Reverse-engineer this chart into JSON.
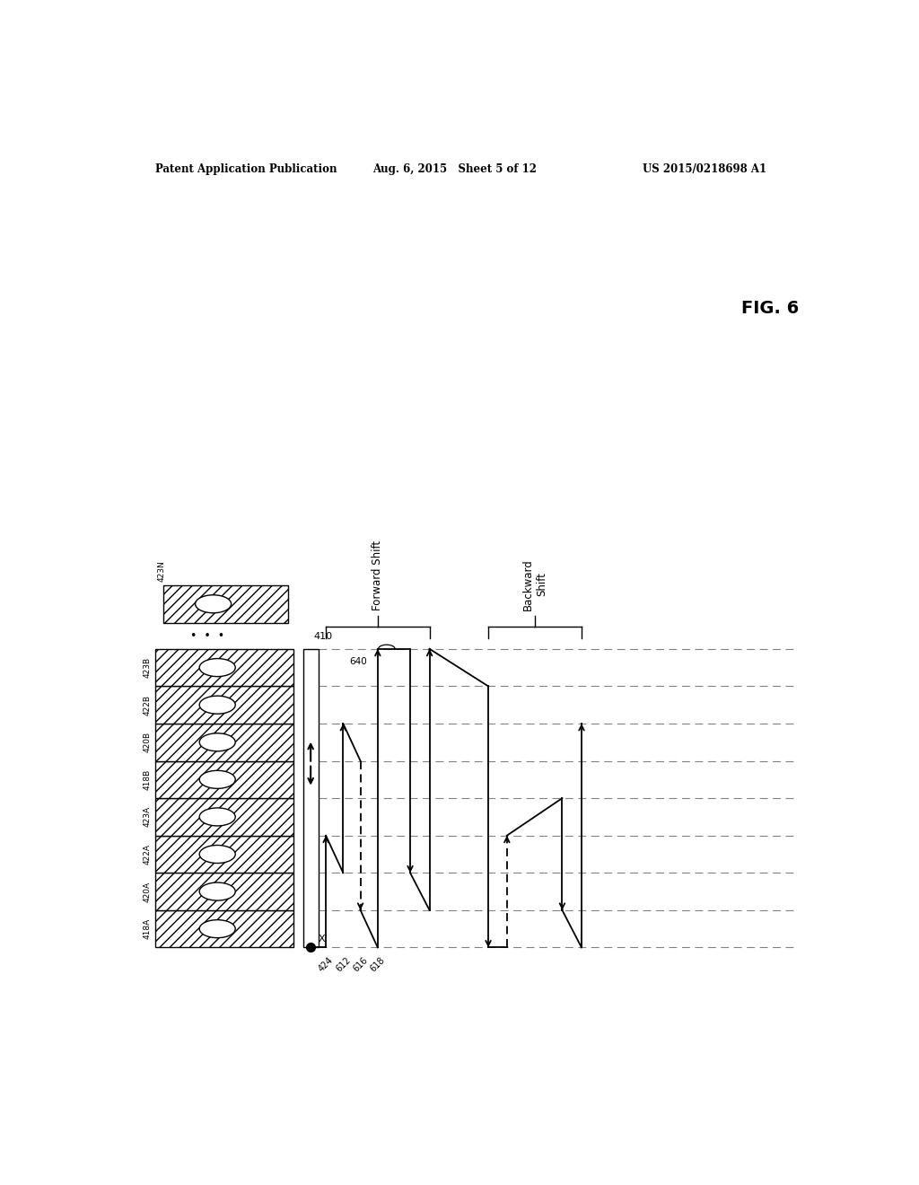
{
  "header_left": "Patent Application Publication",
  "header_mid": "Aug. 6, 2015   Sheet 5 of 12",
  "header_right": "US 2015/0218698 A1",
  "fig_label": "FIG. 6",
  "block_labels": [
    "418A",
    "420A",
    "422A",
    "423A",
    "418B",
    "420B",
    "422B",
    "423B"
  ],
  "top_block_label": "423N",
  "rail_label": "410",
  "bottom_labels": [
    "424",
    "612",
    "616",
    "618"
  ],
  "label_640": "640",
  "label_x": "X",
  "forward_shift_label": "Forward Shift",
  "backward_shift_label": "Backward\nShift",
  "background_color": "#ffffff",
  "line_color": "#000000",
  "dashed_color": "#888888"
}
